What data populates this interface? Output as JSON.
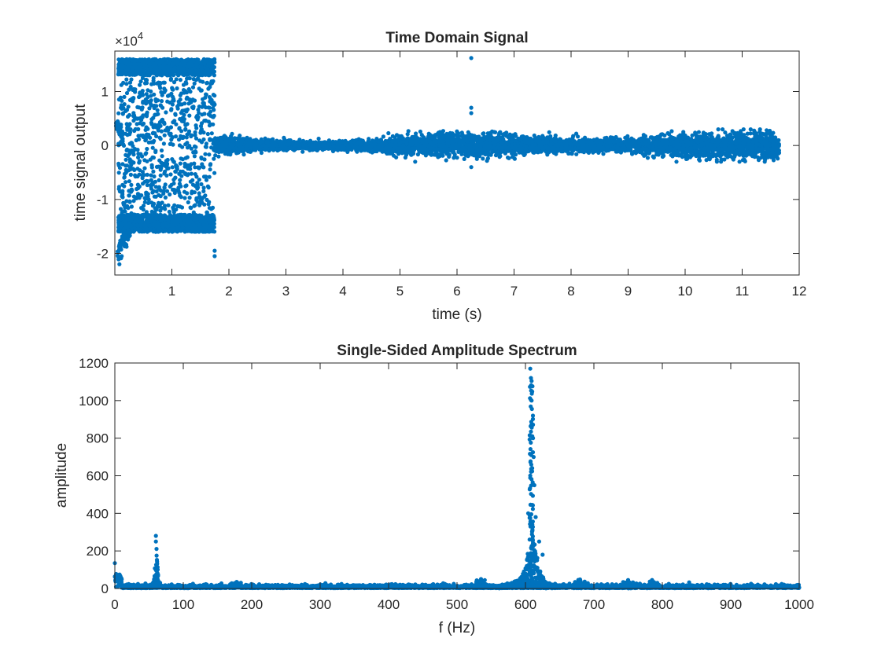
{
  "chart_data": [
    {
      "type": "scatter",
      "title": "Time Domain Signal",
      "xlabel": "time (s)",
      "ylabel": "time signal output",
      "y_exponent_label": "×10",
      "y_exponent_power": "4",
      "xlim": [
        0,
        12
      ],
      "ylim": [
        -2.4,
        1.75
      ],
      "xticks": [
        1,
        2,
        3,
        4,
        5,
        6,
        7,
        8,
        9,
        10,
        11,
        12
      ],
      "yticks": [
        -2,
        -1,
        0,
        1
      ],
      "marker_color": "#0072BD",
      "grid": false,
      "segments": [
        {
          "x_range": [
            0.05,
            1.75
          ],
          "y_range": [
            -1.6,
            1.6
          ],
          "description_values": "dense scatter, upper band ~1.3-1.6, lower band ~-1.6 to -1.3"
        },
        {
          "x_range": [
            1.75,
            11.65
          ],
          "y_range": [
            -0.2,
            0.2
          ],
          "description_values": "low-amplitude noise around 0"
        }
      ],
      "points": [
        {
          "x": 0.08,
          "y": -2.2
        },
        {
          "x": 0.12,
          "y": -2.05
        },
        {
          "x": 0.05,
          "y": 0.45
        },
        {
          "x": 1.75,
          "y": -2.05
        },
        {
          "x": 1.75,
          "y": -1.95
        },
        {
          "x": 6.25,
          "y": 1.62
        },
        {
          "x": 6.25,
          "y": 0.7
        },
        {
          "x": 6.25,
          "y": 0.6
        },
        {
          "x": 6.25,
          "y": -0.4
        },
        {
          "x": 6.65,
          "y": 0.25
        }
      ]
    },
    {
      "type": "scatter",
      "title": "Single-Sided Amplitude Spectrum",
      "xlabel": "f (Hz)",
      "ylabel": "amplitude",
      "xlim": [
        0,
        1000
      ],
      "ylim": [
        0,
        1200
      ],
      "xticks": [
        0,
        100,
        200,
        300,
        400,
        500,
        600,
        700,
        800,
        900,
        1000
      ],
      "yticks": [
        0,
        200,
        400,
        600,
        800,
        1000,
        1200
      ],
      "marker_color": "#0072BD",
      "grid": false,
      "peaks": [
        {
          "x": 0,
          "y": 135
        },
        {
          "x": 60,
          "y": 280
        },
        {
          "x": 60,
          "y": 250
        },
        {
          "x": 61,
          "y": 175
        },
        {
          "x": 607,
          "y": 1170
        },
        {
          "x": 608,
          "y": 1120
        },
        {
          "x": 609,
          "y": 1000
        },
        {
          "x": 610,
          "y": 870
        },
        {
          "x": 611,
          "y": 800
        },
        {
          "x": 612,
          "y": 700
        },
        {
          "x": 613,
          "y": 550
        },
        {
          "x": 604,
          "y": 400
        },
        {
          "x": 615,
          "y": 380
        },
        {
          "x": 620,
          "y": 250
        },
        {
          "x": 625,
          "y": 180
        },
        {
          "x": 178,
          "y": 35
        },
        {
          "x": 535,
          "y": 50
        },
        {
          "x": 750,
          "y": 45
        },
        {
          "x": 785,
          "y": 45
        }
      ]
    }
  ]
}
